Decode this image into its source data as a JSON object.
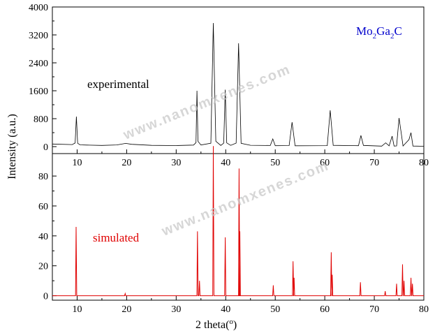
{
  "chart_data": [
    {
      "type": "line",
      "panel": "top",
      "series": [
        {
          "name": "experimental",
          "color": "#000000",
          "x": [
            5,
            9,
            9.6,
            9.85,
            10.1,
            10.6,
            12,
            15,
            18,
            19.8,
            21,
            25,
            30,
            33.5,
            34.0,
            34.2,
            34.4,
            35,
            37.0,
            37.5,
            38.0,
            39.0,
            39.6,
            39.9,
            40.2,
            41,
            42.1,
            42.6,
            43.1,
            45,
            49,
            49.5,
            50,
            52.8,
            53.4,
            54,
            60.5,
            61.1,
            61.7,
            66.8,
            67.3,
            67.8,
            71.5,
            72.3,
            73,
            73.6,
            74,
            74.5,
            75.0,
            75.4,
            75.8,
            77.0,
            77.4,
            77.8,
            80
          ],
          "y": [
            80,
            60,
            100,
            860,
            100,
            50,
            40,
            40,
            50,
            90,
            60,
            40,
            30,
            40,
            120,
            1600,
            150,
            40,
            100,
            3540,
            150,
            40,
            100,
            1630,
            100,
            40,
            100,
            2960,
            100,
            40,
            30,
            220,
            30,
            30,
            700,
            30,
            30,
            1040,
            30,
            30,
            320,
            30,
            20,
            110,
            20,
            300,
            20,
            20,
            820,
            420,
            20,
            200,
            400,
            20,
            10
          ]
        }
      ],
      "xlim": [
        5,
        80
      ],
      "ylim": [
        -200,
        4000
      ],
      "yticks": [
        0,
        800,
        1600,
        2400,
        3200,
        4000
      ],
      "ytick_labels": [
        "0",
        "800",
        "1600",
        "2400",
        "3200",
        "4000"
      ],
      "xticks": [
        10,
        20,
        30,
        40,
        50,
        60,
        70,
        80
      ],
      "xtick_labels": [
        "10",
        "20",
        "30",
        "40",
        "50",
        "60",
        "70",
        "80"
      ]
    },
    {
      "type": "line",
      "panel": "bottom",
      "series": [
        {
          "name": "simulated",
          "color": "#e00000",
          "peaks": [
            [
              9.8,
              46
            ],
            [
              19.7,
              1.5
            ],
            [
              34.3,
              43
            ],
            [
              34.7,
              10
            ],
            [
              37.5,
              100
            ],
            [
              39.9,
              39
            ],
            [
              42.7,
              85
            ],
            [
              42.85,
              43
            ],
            [
              49.6,
              7
            ],
            [
              53.6,
              23
            ],
            [
              53.8,
              12
            ],
            [
              61.3,
              29
            ],
            [
              61.5,
              14
            ],
            [
              67.2,
              9
            ],
            [
              72.2,
              3
            ],
            [
              74.5,
              8
            ],
            [
              75.7,
              21
            ],
            [
              76.0,
              10
            ],
            [
              77.4,
              12
            ],
            [
              77.7,
              8
            ]
          ]
        }
      ],
      "xlim": [
        5,
        80
      ],
      "ylim": [
        -3,
        95
      ],
      "yticks": [
        0,
        20,
        40,
        60,
        80
      ],
      "ytick_labels": [
        "0",
        "20",
        "40",
        "60",
        "80"
      ],
      "xticks": [
        10,
        20,
        30,
        40,
        50,
        60,
        70,
        80
      ],
      "xtick_labels": [
        "10",
        "20",
        "30",
        "40",
        "50",
        "60",
        "70",
        "80"
      ]
    }
  ],
  "labels": {
    "experimental": "experimental",
    "simulated": "simulated",
    "formula": {
      "base1": "Mo",
      "sub1": "2",
      "base2": "Ga",
      "sub2": "2",
      "base3": "C"
    },
    "xlabel": "2 theta(",
    "xlabel_degree": "o",
    "xlabel_end": ")",
    "ylabel": "Intensity (a.u.)",
    "watermark": "www.nanomxenes.com"
  },
  "colors": {
    "experimental": "#000000",
    "simulated": "#e00000",
    "formula": "#0000cc",
    "watermark": "#c8c8c8"
  }
}
